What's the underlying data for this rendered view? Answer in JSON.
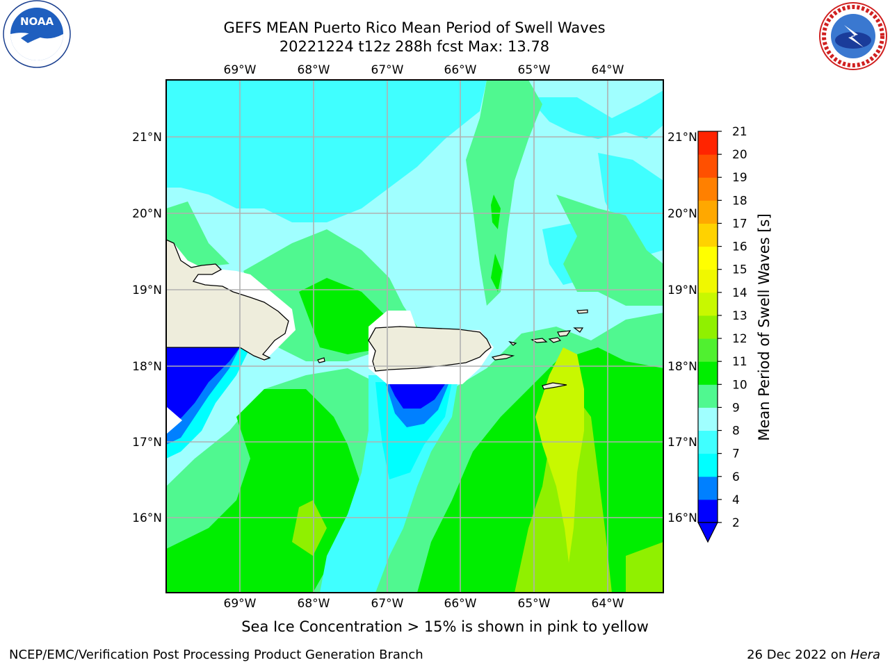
{
  "title": {
    "line1": "GEFS MEAN Puerto Rico Mean Period of Swell Waves",
    "line2": "20221224 t12z 288h fcst   Max: 13.78"
  },
  "map": {
    "lon_ticks_top": [
      "69°W",
      "68°W",
      "67°W",
      "66°W",
      "65°W",
      "64°W"
    ],
    "lon_ticks_bottom": [
      "69°W",
      "68°W",
      "67°W",
      "66°W",
      "65°W",
      "64°W"
    ],
    "lat_ticks_left": [
      "21°N",
      "20°N",
      "19°N",
      "18°N",
      "17°N",
      "16°N"
    ],
    "lat_ticks_right": [
      "21°N",
      "20°N",
      "19°N",
      "18°N",
      "17°N",
      "16°N"
    ],
    "lon_range": [
      -70.0,
      -63.25
    ],
    "lat_range": [
      15.0,
      21.75
    ],
    "colors": {
      "land": "#eeeddc",
      "grid": "#b0b0b0",
      "coast": "#000000"
    }
  },
  "colorbar": {
    "label": "Mean Period of Swell Waves [s]",
    "tick_labels": [
      "2",
      "4",
      "6",
      "7",
      "8",
      "9",
      "10",
      "11",
      "12",
      "13",
      "14",
      "15",
      "16",
      "17",
      "18",
      "19",
      "20",
      "21"
    ],
    "levels": [
      2,
      4,
      6,
      7,
      8,
      9,
      10,
      11,
      12,
      13,
      14,
      15,
      16,
      17,
      18,
      19,
      20,
      21
    ],
    "colors": [
      "#0000ff",
      "#0080ff",
      "#00ffff",
      "#40ffff",
      "#a0ffff",
      "#50f890",
      "#00ee00",
      "#50f030",
      "#90f000",
      "#c8f800",
      "#f0f800",
      "#ffff00",
      "#ffd200",
      "#ffa800",
      "#ff8000",
      "#ff5000",
      "#ff2400",
      "#ff0000"
    ],
    "extend_color": "#0000ff"
  },
  "subtitle": "Sea Ice Concentration > 15% is shown in pink to yellow",
  "footer": {
    "left": "NCEP/EMC/Verification Post Processing Product Generation Branch",
    "right_date": "26 Dec 2022 on ",
    "right_host": "Hera"
  },
  "logos": {
    "left": "noaa-logo",
    "right": "nws-logo"
  }
}
